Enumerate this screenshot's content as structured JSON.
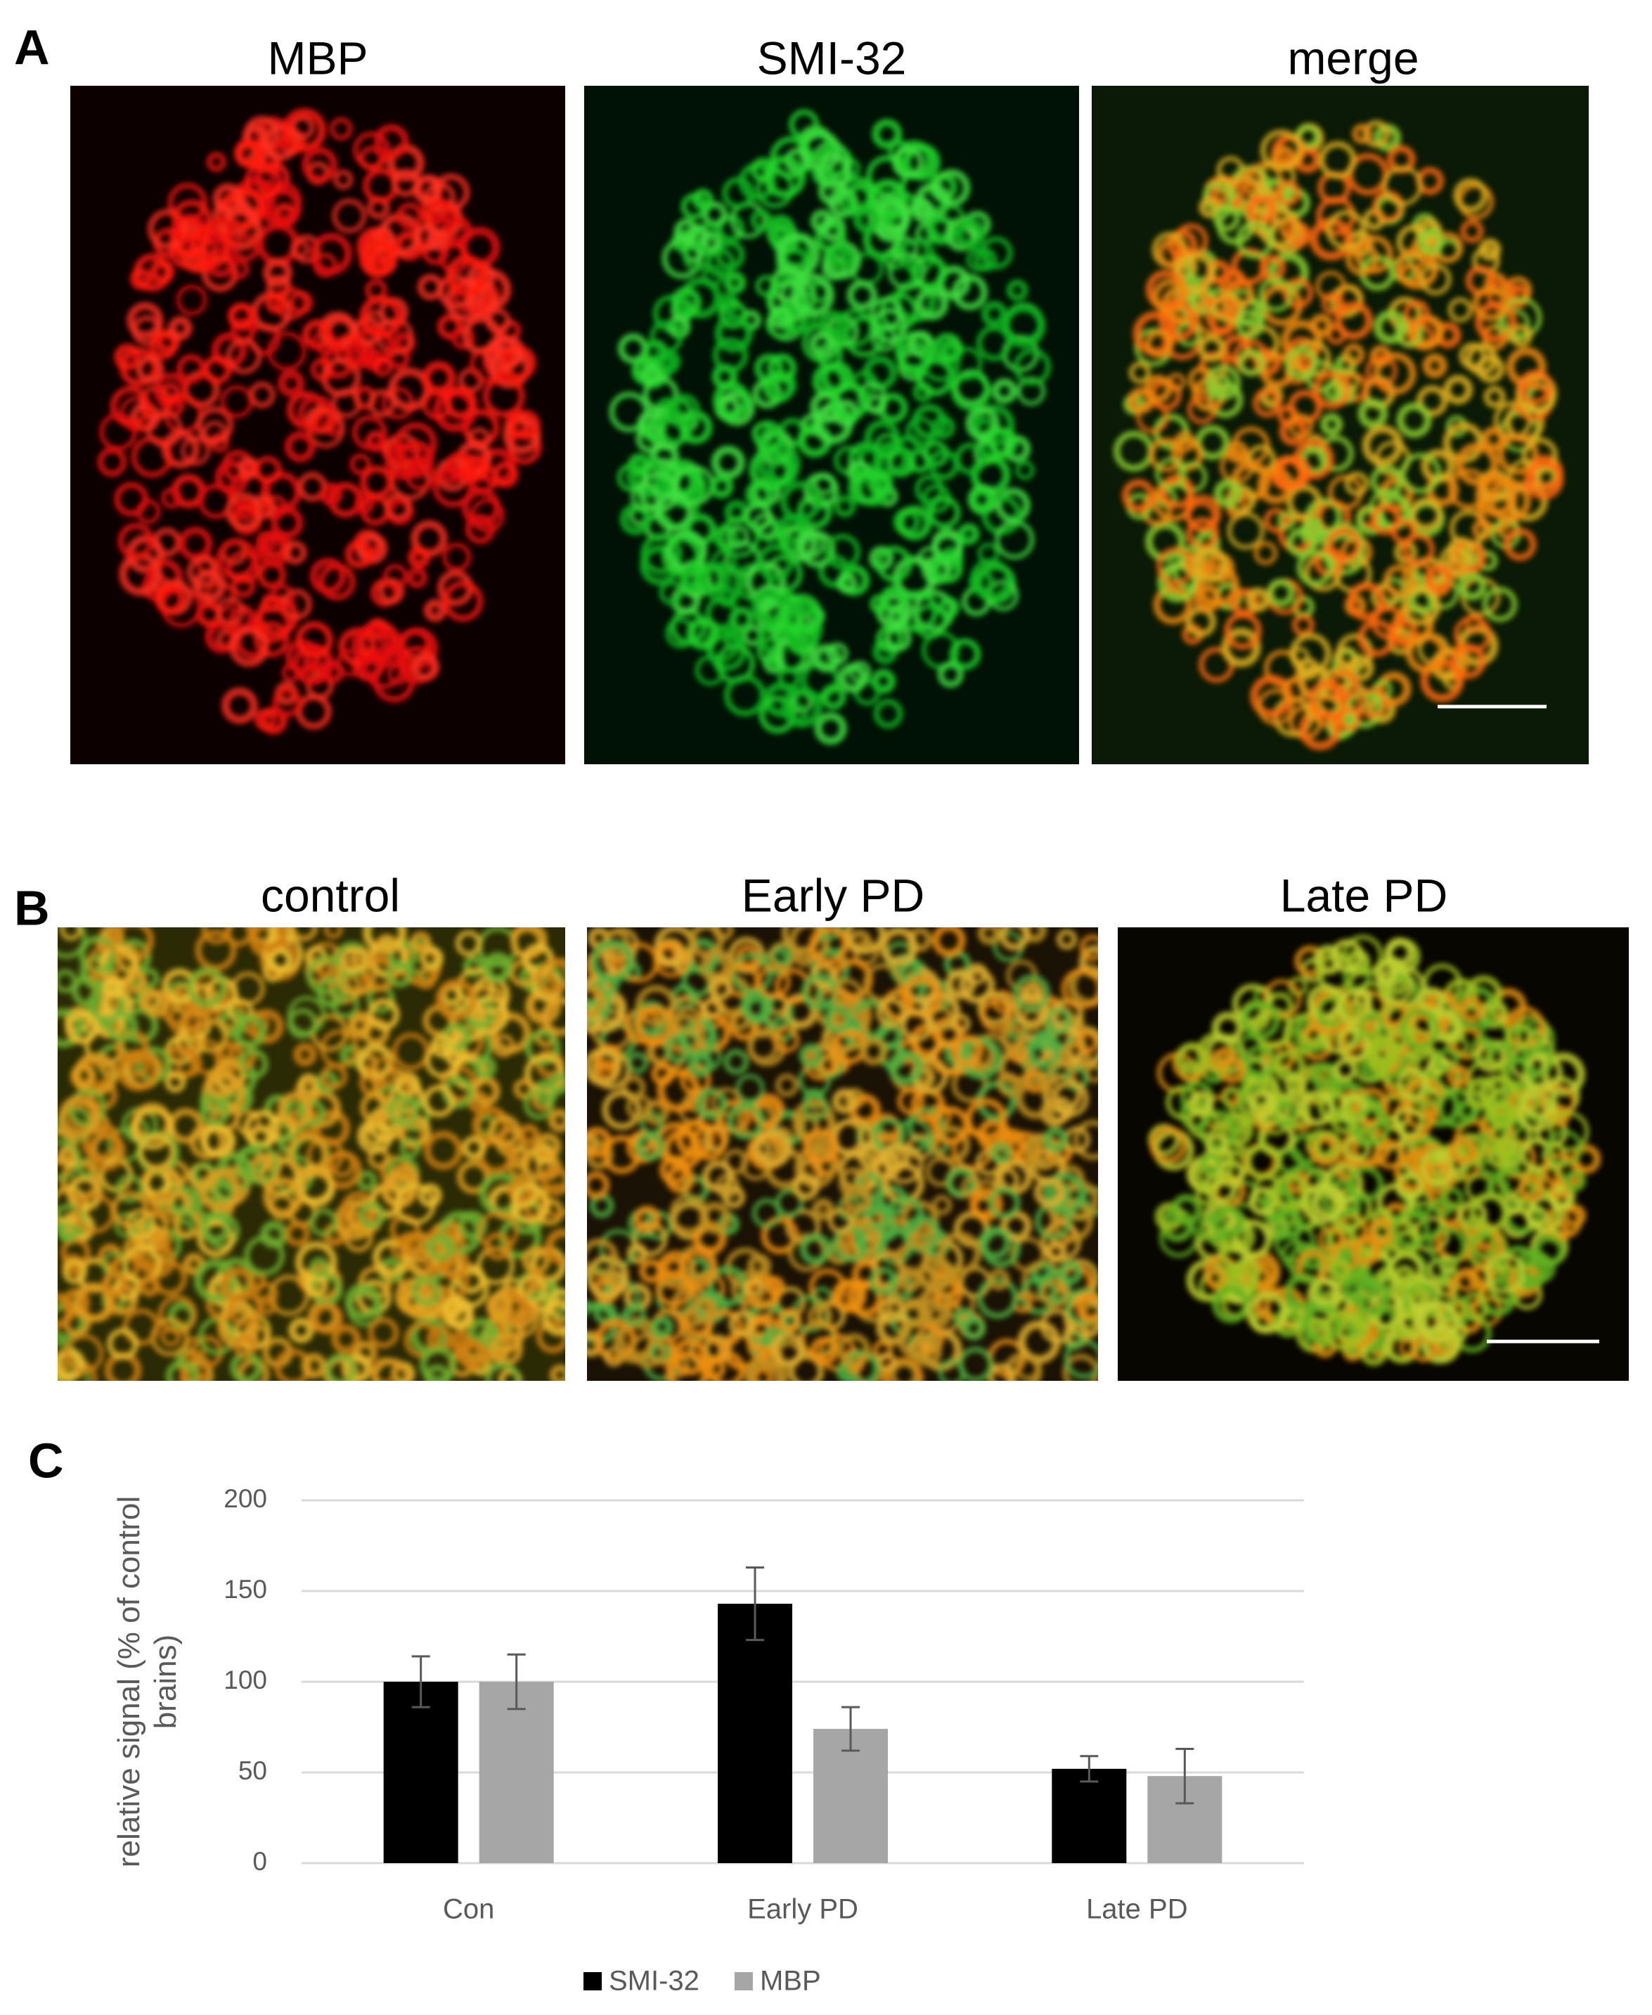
{
  "panels": {
    "A": {
      "label": "A",
      "titles": [
        "MBP",
        "SMI-32",
        "merge"
      ]
    },
    "B": {
      "label": "B",
      "titles": [
        "control",
        "Early PD",
        "Late PD"
      ]
    },
    "C": {
      "label": "C"
    }
  },
  "chart_data": {
    "type": "bar",
    "y_label": "relative signal (% of control brains)",
    "categories": [
      "Con",
      "Early PD",
      "Late PD"
    ],
    "series": [
      {
        "name": "SMI-32",
        "color": "#000000",
        "values": [
          100,
          143,
          52
        ],
        "errors": [
          14,
          20,
          7
        ]
      },
      {
        "name": "MBP",
        "color": "#a6a6a6",
        "values": [
          100,
          74,
          48
        ],
        "errors": [
          15,
          12,
          15
        ]
      }
    ],
    "ylim": [
      0,
      200
    ],
    "yticks": [
      0,
      50,
      100,
      150,
      200
    ],
    "grid": true,
    "legend": "bottom"
  }
}
